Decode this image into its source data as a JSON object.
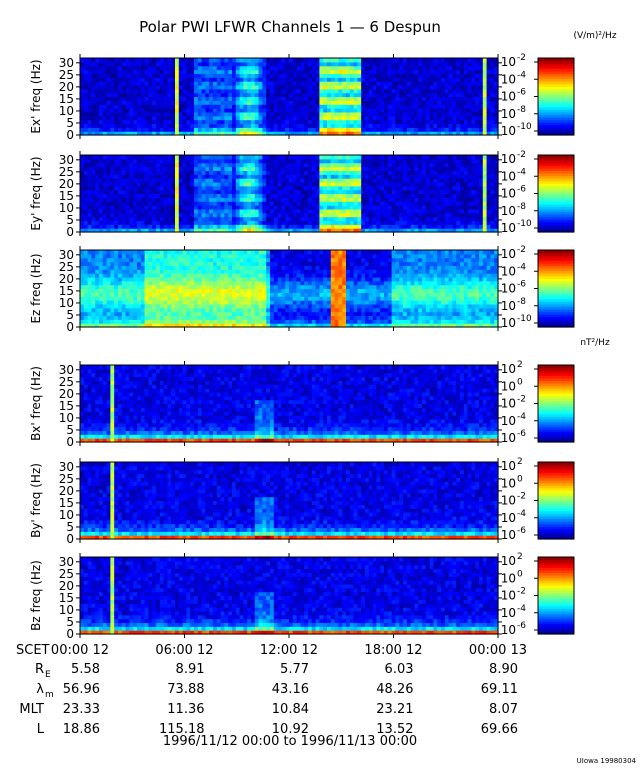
{
  "title": "Polar PWI LFWR Channels 1 — 6 Despun",
  "footer_range": "1996/11/12 00:00 to 1996/11/13 00:00",
  "credit": "UIowa 19980304",
  "chart_data": {
    "type": "heatmap",
    "x_unit": "SCET",
    "x_tick_labels": [
      "00:00 12",
      "06:00 12",
      "12:00 12",
      "18:00 12",
      "00:00 13"
    ],
    "y_ticks": [
      0,
      5,
      10,
      15,
      20,
      25,
      30
    ],
    "ylim": [
      0,
      32
    ],
    "panels": [
      {
        "ylabel": "Ex' freq (Hz)",
        "kind": "e",
        "colorbar_unit": "(V/m)²/Hz",
        "colorbar_ticks": [
          "10",
          "10",
          "10",
          "10",
          "10"
        ],
        "colorbar_exponents": [
          "-2",
          "-4",
          "-6",
          "-8",
          "-10"
        ]
      },
      {
        "ylabel": "Ey' freq (Hz)",
        "kind": "e",
        "colorbar_unit": "",
        "colorbar_ticks": [
          "10",
          "10",
          "10",
          "10",
          "10"
        ],
        "colorbar_exponents": [
          "-2",
          "-4",
          "-6",
          "-8",
          "-10"
        ]
      },
      {
        "ylabel": "Ez freq (Hz)",
        "kind": "ez",
        "colorbar_unit": "",
        "colorbar_ticks": [
          "10",
          "10",
          "10",
          "10",
          "10"
        ],
        "colorbar_exponents": [
          "-2",
          "-4",
          "-6",
          "-8",
          "-10"
        ]
      },
      {
        "ylabel": "Bx' freq (Hz)",
        "kind": "b",
        "colorbar_unit": "nT²/Hz",
        "colorbar_ticks": [
          "10",
          "10",
          "10",
          "10",
          "10"
        ],
        "colorbar_exponents": [
          "2",
          "0",
          "-2",
          "-4",
          "-6"
        ]
      },
      {
        "ylabel": "By' freq (Hz)",
        "kind": "b",
        "colorbar_unit": "",
        "colorbar_ticks": [
          "10",
          "10",
          "10",
          "10",
          "10"
        ],
        "colorbar_exponents": [
          "2",
          "0",
          "-2",
          "-4",
          "-6"
        ]
      },
      {
        "ylabel": "Bz freq (Hz)",
        "kind": "b",
        "colorbar_unit": "",
        "colorbar_ticks": [
          "10",
          "10",
          "10",
          "10",
          "10"
        ],
        "colorbar_exponents": [
          "2",
          "0",
          "-2",
          "-4",
          "-6"
        ]
      }
    ],
    "ephemeris": [
      {
        "label": "R",
        "sub": "E",
        "values": [
          "5.58",
          "8.91",
          "5.77",
          "6.03",
          "8.90"
        ]
      },
      {
        "label": "λ",
        "sub": "m",
        "values": [
          "56.96",
          "73.88",
          "43.16",
          "48.26",
          "69.11"
        ]
      },
      {
        "label": "MLT",
        "sub": "",
        "values": [
          "23.33",
          "11.36",
          "10.84",
          "23.21",
          "8.07"
        ]
      },
      {
        "label": "L",
        "sub": "",
        "values": [
          "18.86",
          "115.18",
          "10.92",
          "13.52",
          "69.66"
        ]
      }
    ]
  }
}
